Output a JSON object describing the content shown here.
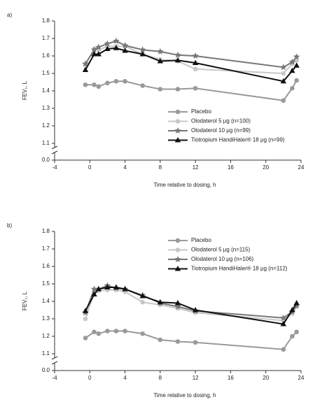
{
  "chart_data": [
    {
      "type": "line",
      "label": "a)",
      "ylabel": "FEV₁, L",
      "xlabel": "Time relative to dosing, h",
      "x": [
        -0.5,
        0.5,
        1,
        2,
        3,
        4,
        6,
        8,
        10,
        12,
        22,
        23,
        23.5
      ],
      "xlim": [
        -4,
        24
      ],
      "xticks": [
        -4,
        0,
        4,
        8,
        12,
        16,
        20,
        24
      ],
      "ylim": [
        0,
        1.8
      ],
      "y_break": [
        0,
        1.1
      ],
      "yticks": [
        {
          "value": 0,
          "label": "0.0"
        },
        1.1,
        1.2,
        1.3,
        1.4,
        1.5,
        1.6,
        1.7,
        1.8
      ],
      "legend": "lower right",
      "series": [
        {
          "name": "Placebo",
          "color": "#9a9a9a",
          "marker": "circle",
          "values": [
            1.435,
            1.435,
            1.425,
            1.445,
            1.455,
            1.455,
            1.43,
            1.41,
            1.41,
            1.415,
            1.345,
            1.415,
            1.46
          ]
        },
        {
          "name": "Olodaterol 5 μg (n=100)",
          "color": "#c8c8c8",
          "marker": "circle",
          "values": [
            1.55,
            1.64,
            1.635,
            1.655,
            1.655,
            1.655,
            1.61,
            1.58,
            1.57,
            1.525,
            1.5,
            1.555,
            1.575
          ]
        },
        {
          "name": "Olodaterol 10 μg (n=99)",
          "color": "#777777",
          "marker": "star",
          "values": [
            1.555,
            1.635,
            1.65,
            1.67,
            1.685,
            1.66,
            1.635,
            1.625,
            1.605,
            1.6,
            1.535,
            1.565,
            1.595
          ]
        },
        {
          "name": "Tiotropium HandiHaler® 18 μg (n=99)",
          "color": "#111111",
          "marker": "triangle",
          "values": [
            1.52,
            1.61,
            1.61,
            1.64,
            1.645,
            1.63,
            1.61,
            1.57,
            1.575,
            1.56,
            1.455,
            1.515,
            1.545
          ]
        }
      ]
    },
    {
      "type": "line",
      "label": "b)",
      "ylabel": "FEV₁, L",
      "xlabel": "Time relative to dosing, h",
      "x": [
        -0.5,
        0.5,
        1,
        2,
        3,
        4,
        6,
        8,
        10,
        12,
        22,
        23,
        23.5
      ],
      "xlim": [
        -4,
        24
      ],
      "xticks": [
        -4,
        0,
        4,
        8,
        12,
        16,
        20,
        24
      ],
      "ylim": [
        0,
        1.8
      ],
      "y_break": [
        0,
        1.1
      ],
      "yticks": [
        {
          "value": 0,
          "label": "0.0"
        },
        1.1,
        1.2,
        1.3,
        1.4,
        1.5,
        1.6,
        1.7,
        1.8
      ],
      "legend": "upper right",
      "series": [
        {
          "name": "Placebo",
          "color": "#9a9a9a",
          "marker": "circle",
          "values": [
            1.19,
            1.225,
            1.215,
            1.23,
            1.23,
            1.23,
            1.215,
            1.18,
            1.17,
            1.165,
            1.125,
            1.2,
            1.225
          ]
        },
        {
          "name": "Olodaterol 5 μg (n=115)",
          "color": "#c8c8c8",
          "marker": "circle",
          "values": [
            1.3,
            1.45,
            1.46,
            1.465,
            1.465,
            1.455,
            1.395,
            1.38,
            1.36,
            1.335,
            1.29,
            1.33,
            1.37
          ]
        },
        {
          "name": "Olodaterol 10 μg (n=106)",
          "color": "#777777",
          "marker": "star",
          "values": [
            1.335,
            1.47,
            1.47,
            1.49,
            1.475,
            1.47,
            1.435,
            1.39,
            1.37,
            1.345,
            1.305,
            1.34,
            1.375
          ]
        },
        {
          "name": "Tiotropium HandiHaler® 18 μg (n=112)",
          "color": "#111111",
          "marker": "triangle",
          "values": [
            1.345,
            1.44,
            1.47,
            1.48,
            1.48,
            1.47,
            1.43,
            1.395,
            1.39,
            1.35,
            1.27,
            1.35,
            1.39
          ]
        }
      ]
    }
  ]
}
